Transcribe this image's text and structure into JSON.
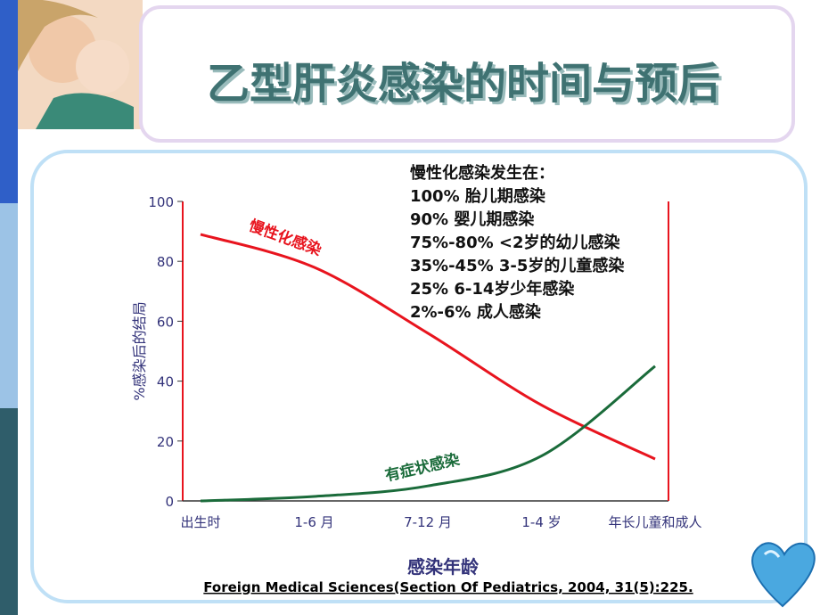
{
  "slide": {
    "title": "乙型肝炎感染的时间与预后",
    "source": "Foreign Medical Sciences(Section Of Pediatrics, 2004, 31(5):225."
  },
  "chart_data": {
    "type": "line",
    "annotation": [
      "慢性化感染发生在：",
      "100%  胎儿期感染",
      "90%  婴儿期感染",
      "75%-80% <2岁的幼儿感染",
      "35%-45% 3-5岁的儿童感染",
      "25% 6-14岁少年感染",
      "2%-6%  成人感染"
    ],
    "ylabel": "%感染后的结局",
    "xlabel": "感染年龄",
    "categories": [
      "出生时",
      "1-6 月",
      "7-12 月",
      "1-4 岁",
      "年长儿童和成人"
    ],
    "series": [
      {
        "name": "慢性化感染",
        "color": "#e8141e",
        "values": [
          89,
          78,
          56,
          32,
          14
        ]
      },
      {
        "name": "有症状感染",
        "color": "#1a6b3a",
        "values": [
          0,
          1.5,
          5,
          15,
          45
        ]
      }
    ],
    "ylim": [
      0,
      100
    ],
    "yticks": [
      0,
      20,
      40,
      60,
      80,
      100
    ]
  }
}
